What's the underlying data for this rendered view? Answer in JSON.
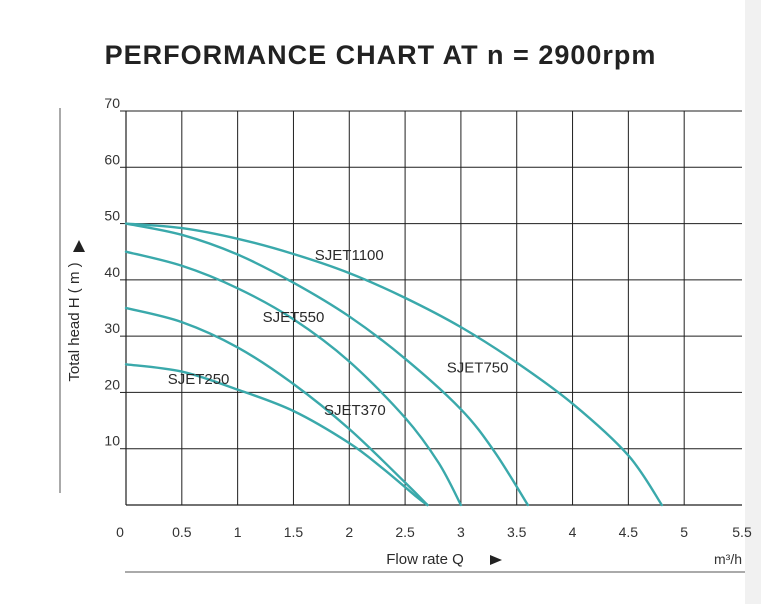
{
  "chart_data": {
    "type": "line",
    "title": "PERFORMANCE CHART AT n = 2900rpm",
    "xlabel": "Flow rate Q",
    "ylabel": "Total head H ( m )",
    "x_unit": "m³/h",
    "xlim": [
      0,
      5.5
    ],
    "ylim": [
      0,
      70
    ],
    "grid": true,
    "x_ticks": [
      "0",
      "0.5",
      "1",
      "1.5",
      "2",
      "2.5",
      "3",
      "3.5",
      "4",
      "4.5",
      "5",
      "5.5"
    ],
    "y_ticks": [
      "10",
      "20",
      "30",
      "40",
      "50",
      "60",
      "70"
    ],
    "series": [
      {
        "name": "SJET250",
        "color": "#3aa9ab",
        "x": [
          0,
          0.5,
          1,
          1.5,
          2,
          2.3,
          2.6,
          2.7
        ],
        "y": [
          25,
          23.7,
          20.5,
          16.7,
          11,
          6.5,
          1.5,
          0
        ]
      },
      {
        "name": "SJET370",
        "color": "#3aa9ab",
        "x": [
          0,
          0.5,
          1,
          1.5,
          2,
          2.5,
          2.7
        ],
        "y": [
          35,
          32.5,
          28,
          21.5,
          13.5,
          4,
          0
        ]
      },
      {
        "name": "SJET550",
        "color": "#3aa9ab",
        "x": [
          0,
          0.5,
          1,
          1.5,
          2,
          2.5,
          2.8,
          3
        ],
        "y": [
          45,
          42.5,
          38.5,
          33,
          25.5,
          15.5,
          7.5,
          0
        ]
      },
      {
        "name": "SJET750",
        "color": "#3aa9ab",
        "x": [
          0,
          0.5,
          1,
          1.5,
          2,
          2.5,
          3,
          3.3,
          3.6
        ],
        "y": [
          50,
          48,
          44.5,
          39.5,
          33.5,
          26,
          17,
          9.5,
          0
        ]
      },
      {
        "name": "SJET1100",
        "color": "#3aa9ab",
        "x": [
          0,
          0.5,
          1,
          1.5,
          2,
          2.5,
          3,
          3.5,
          4,
          4.5,
          4.8
        ],
        "y": [
          50,
          49.2,
          47.3,
          44.6,
          41.2,
          36.8,
          31.6,
          25.3,
          18,
          8.8,
          0
        ]
      }
    ]
  }
}
